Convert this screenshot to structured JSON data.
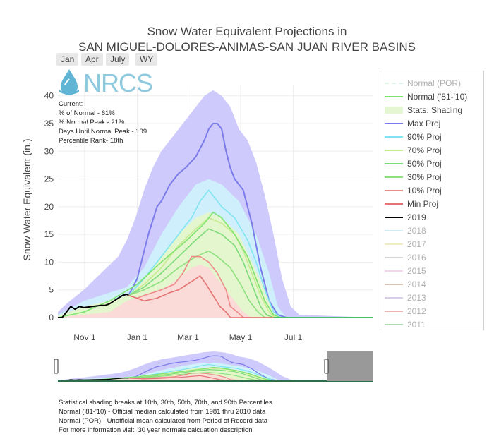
{
  "header": {
    "title_line1": "Snow Water Equivalent Projections in",
    "title_line2": "SAN MIGUEL-DOLORES-ANIMAS-SAN JUAN RIVER BASINS"
  },
  "range_buttons": [
    "Jan",
    "Apr",
    "July",
    "WY"
  ],
  "logo": {
    "text": "NRCS"
  },
  "info": {
    "current_label": "Current:",
    "pct_normal": "% of Normal - 61%",
    "pct_normal_peak": "% Normal Peak - 21%",
    "days_until_peak": "Days Until Normal Peak - 109",
    "percentile_rank": "Percentile Rank- 18th"
  },
  "colors": {
    "max": "#7b7bea",
    "p90": "#7fe5f0",
    "p70": "#c6ec8f",
    "p50": "#7ddb7a",
    "p30": "#8ee07f",
    "p10": "#ef8a8a",
    "min": "#e57373",
    "wy2019": "#000000",
    "max_fill": "#c9c4fb",
    "p90_fill": "#cff6fb",
    "p70_fill": "#e6f7c4",
    "p50_fill": "#d1f4c3",
    "p10_fill": "#fcd8d8",
    "min_fill": "#fbbdbd"
  },
  "legend": {
    "items": [
      {
        "label": "Normal (POR)",
        "style": "dash",
        "color": "#b9e8c9",
        "faded": true
      },
      {
        "label": "Normal ('81-'10)",
        "style": "line",
        "color": "#7ee36f",
        "faded": false
      },
      {
        "label": "Stats. Shading",
        "style": "box",
        "color": "#e5f7d2",
        "faded": false
      },
      {
        "label": "Max Proj",
        "style": "line",
        "color": "#7b7bea",
        "faded": false
      },
      {
        "label": "90% Proj",
        "style": "line",
        "color": "#7fe5f0",
        "faded": false
      },
      {
        "label": "70% Proj",
        "style": "line",
        "color": "#c6ec8f",
        "faded": false
      },
      {
        "label": "50% Proj",
        "style": "line",
        "color": "#7ddb7a",
        "faded": false
      },
      {
        "label": "30% Proj",
        "style": "line",
        "color": "#8ee07f",
        "faded": false
      },
      {
        "label": "10% Proj",
        "style": "line",
        "color": "#ef8a8a",
        "faded": false
      },
      {
        "label": "Min Proj",
        "style": "line",
        "color": "#e57373",
        "faded": false
      },
      {
        "label": "2019",
        "style": "line",
        "color": "#000000",
        "faded": false
      },
      {
        "label": "2018",
        "style": "line",
        "color": "#7fd6e6",
        "faded": true
      },
      {
        "label": "2017",
        "style": "line",
        "color": "#e0d27a",
        "faded": true
      },
      {
        "label": "2016",
        "style": "line",
        "color": "#9e9e9e",
        "faded": true
      },
      {
        "label": "2015",
        "style": "line",
        "color": "#e59ad8",
        "faded": true
      },
      {
        "label": "2014",
        "style": "line",
        "color": "#a0704f",
        "faded": true
      },
      {
        "label": "2013",
        "style": "line",
        "color": "#a58ac9",
        "faded": true
      },
      {
        "label": "2012",
        "style": "line",
        "color": "#e04848",
        "faded": true
      },
      {
        "label": "2011",
        "style": "line",
        "color": "#4aa84a",
        "faded": true
      }
    ]
  },
  "footnotes": {
    "line1": "Statistical shading breaks at 10th, 30th, 50th, 70th, and 90th Percentiles",
    "line2": "Normal ('81-'10) - Official median calculated from 1981 thru 2010 data",
    "line3": "Normal (POR) - Unofficial mean calculated from Period of Record data",
    "line4": "For more information visit: 30 year normals calcuation description"
  },
  "chart_data": {
    "type": "line",
    "title": "Snow Water Equivalent Projections in SAN MIGUEL-DOLORES-ANIMAS-SAN JUAN RIVER BASINS",
    "xlabel": "",
    "ylabel": "Snow Water Equivalent (in.)",
    "x_unit": "day of water year (day 0 = Oct 1)",
    "xlim": [
      0,
      365
    ],
    "ylim": [
      0,
      42
    ],
    "x_ticks": [
      {
        "label": "Nov 1",
        "day": 31
      },
      {
        "label": "Jan 1",
        "day": 92
      },
      {
        "label": "Mar 1",
        "day": 151
      },
      {
        "label": "May 1",
        "day": 212
      },
      {
        "label": "Jul 1",
        "day": 273
      }
    ],
    "y_ticks": [
      0,
      5,
      10,
      15,
      20,
      25,
      30,
      35,
      40
    ],
    "bands": [
      {
        "name": "Max shading",
        "upper": [
          [
            0,
            1
          ],
          [
            10,
            2.5
          ],
          [
            30,
            5
          ],
          [
            50,
            8
          ],
          [
            70,
            11
          ],
          [
            80,
            14
          ],
          [
            90,
            18
          ],
          [
            100,
            23
          ],
          [
            110,
            27
          ],
          [
            120,
            30
          ],
          [
            130,
            32
          ],
          [
            140,
            34
          ],
          [
            150,
            36
          ],
          [
            160,
            38
          ],
          [
            170,
            40
          ],
          [
            180,
            41
          ],
          [
            190,
            40
          ],
          [
            200,
            38
          ],
          [
            210,
            34
          ],
          [
            220,
            32
          ],
          [
            230,
            28
          ],
          [
            240,
            22
          ],
          [
            250,
            15
          ],
          [
            260,
            7
          ],
          [
            270,
            2
          ],
          [
            280,
            0.5
          ],
          [
            365,
            0
          ]
        ],
        "lower": [
          [
            0,
            0
          ],
          [
            365,
            0
          ]
        ]
      },
      {
        "name": "90% shading",
        "upper": [
          [
            0,
            0.5
          ],
          [
            30,
            3
          ],
          [
            60,
            4.5
          ],
          [
            80,
            5.5
          ],
          [
            100,
            9
          ],
          [
            120,
            15
          ],
          [
            140,
            20
          ],
          [
            160,
            24
          ],
          [
            175,
            25
          ],
          [
            190,
            24
          ],
          [
            210,
            21
          ],
          [
            230,
            15
          ],
          [
            245,
            8
          ],
          [
            255,
            2
          ],
          [
            265,
            0
          ],
          [
            365,
            0
          ]
        ],
        "lower": [
          [
            0,
            0
          ],
          [
            365,
            0
          ]
        ]
      },
      {
        "name": "70% shading",
        "upper": [
          [
            0,
            0.3
          ],
          [
            30,
            2
          ],
          [
            60,
            3
          ],
          [
            80,
            4
          ],
          [
            100,
            7
          ],
          [
            120,
            11
          ],
          [
            140,
            15
          ],
          [
            160,
            18
          ],
          [
            175,
            19
          ],
          [
            190,
            18
          ],
          [
            210,
            15
          ],
          [
            225,
            10
          ],
          [
            240,
            5
          ],
          [
            250,
            1
          ],
          [
            260,
            0
          ],
          [
            365,
            0
          ]
        ],
        "lower": [
          [
            0,
            0
          ],
          [
            365,
            0
          ]
        ]
      },
      {
        "name": "10% shading",
        "upper": [
          [
            0,
            0
          ],
          [
            60,
            1
          ],
          [
            80,
            3
          ],
          [
            100,
            4
          ],
          [
            120,
            5
          ],
          [
            140,
            7
          ],
          [
            155,
            9
          ],
          [
            165,
            9.5
          ],
          [
            175,
            9
          ],
          [
            190,
            6
          ],
          [
            205,
            3
          ],
          [
            215,
            1
          ],
          [
            225,
            0
          ],
          [
            365,
            0
          ]
        ],
        "lower": [
          [
            0,
            0
          ],
          [
            365,
            0
          ]
        ]
      }
    ],
    "series": [
      {
        "name": "Max Proj",
        "color": "#7b7bea",
        "points": [
          [
            82,
            4
          ],
          [
            92,
            7
          ],
          [
            100,
            12
          ],
          [
            105,
            15
          ],
          [
            115,
            20
          ],
          [
            120,
            21
          ],
          [
            130,
            24
          ],
          [
            140,
            26
          ],
          [
            148,
            27
          ],
          [
            160,
            29
          ],
          [
            170,
            32
          ],
          [
            175,
            34
          ],
          [
            180,
            35
          ],
          [
            185,
            35
          ],
          [
            190,
            34
          ],
          [
            195,
            30
          ],
          [
            200,
            27
          ],
          [
            205,
            25
          ],
          [
            210,
            24
          ],
          [
            215,
            23
          ],
          [
            225,
            17
          ],
          [
            235,
            9
          ],
          [
            245,
            3
          ],
          [
            255,
            0.5
          ],
          [
            265,
            0
          ],
          [
            365,
            0
          ]
        ]
      },
      {
        "name": "90% Proj",
        "color": "#7fe5f0",
        "points": [
          [
            82,
            4
          ],
          [
            100,
            7
          ],
          [
            120,
            11
          ],
          [
            140,
            15
          ],
          [
            155,
            18
          ],
          [
            165,
            21
          ],
          [
            175,
            23
          ],
          [
            180,
            22
          ],
          [
            190,
            20
          ],
          [
            205,
            18
          ],
          [
            220,
            14
          ],
          [
            230,
            10
          ],
          [
            240,
            5
          ],
          [
            250,
            1
          ],
          [
            258,
            0
          ],
          [
            365,
            0
          ]
        ]
      },
      {
        "name": "70% Proj",
        "color": "#c6ec8f",
        "points": [
          [
            82,
            4
          ],
          [
            100,
            6
          ],
          [
            120,
            9
          ],
          [
            140,
            13
          ],
          [
            160,
            16
          ],
          [
            175,
            18
          ],
          [
            190,
            17
          ],
          [
            205,
            15
          ],
          [
            215,
            12
          ],
          [
            225,
            8
          ],
          [
            235,
            4
          ],
          [
            245,
            1
          ],
          [
            252,
            0
          ],
          [
            365,
            0
          ]
        ]
      },
      {
        "name": "Normal ('81-'10)",
        "color": "#7ee36f",
        "points": [
          [
            0,
            0
          ],
          [
            30,
            1
          ],
          [
            60,
            3
          ],
          [
            92,
            6
          ],
          [
            120,
            10
          ],
          [
            150,
            14
          ],
          [
            170,
            17
          ],
          [
            180,
            19
          ],
          [
            190,
            18
          ],
          [
            205,
            15
          ],
          [
            220,
            11
          ],
          [
            230,
            7
          ],
          [
            240,
            3
          ],
          [
            250,
            0.5
          ],
          [
            258,
            0
          ],
          [
            365,
            0
          ]
        ]
      },
      {
        "name": "50% Proj",
        "color": "#7ddb7a",
        "points": [
          [
            82,
            4
          ],
          [
            100,
            5.5
          ],
          [
            120,
            8
          ],
          [
            140,
            11
          ],
          [
            160,
            14
          ],
          [
            175,
            16
          ],
          [
            190,
            15
          ],
          [
            205,
            13
          ],
          [
            215,
            10
          ],
          [
            225,
            6
          ],
          [
            235,
            2
          ],
          [
            242,
            0.5
          ],
          [
            250,
            0
          ],
          [
            365,
            0
          ]
        ]
      },
      {
        "name": "30% Proj",
        "color": "#8ee07f",
        "points": [
          [
            82,
            4
          ],
          [
            100,
            5
          ],
          [
            120,
            6.5
          ],
          [
            140,
            9
          ],
          [
            160,
            11
          ],
          [
            175,
            12
          ],
          [
            185,
            11
          ],
          [
            200,
            9
          ],
          [
            212,
            6
          ],
          [
            222,
            3
          ],
          [
            232,
            1
          ],
          [
            240,
            0
          ],
          [
            365,
            0
          ]
        ]
      },
      {
        "name": "10% Proj",
        "color": "#ef8a8a",
        "points": [
          [
            82,
            4
          ],
          [
            92,
            3.5
          ],
          [
            100,
            4
          ],
          [
            120,
            5
          ],
          [
            135,
            6
          ],
          [
            145,
            8
          ],
          [
            155,
            11
          ],
          [
            165,
            11
          ],
          [
            175,
            10
          ],
          [
            185,
            8
          ],
          [
            195,
            5
          ],
          [
            200,
            2
          ],
          [
            208,
            1
          ],
          [
            215,
            0
          ],
          [
            365,
            0
          ]
        ]
      },
      {
        "name": "Min Proj",
        "color": "#e57373",
        "points": [
          [
            82,
            4
          ],
          [
            92,
            3.5
          ],
          [
            100,
            3
          ],
          [
            115,
            3.5
          ],
          [
            130,
            4.5
          ],
          [
            140,
            5
          ],
          [
            150,
            6
          ],
          [
            160,
            7
          ],
          [
            165,
            7.5
          ],
          [
            172,
            6
          ],
          [
            180,
            4
          ],
          [
            188,
            2
          ],
          [
            195,
            1
          ],
          [
            200,
            0
          ],
          [
            365,
            0
          ]
        ]
      },
      {
        "name": "2019",
        "color": "#000000",
        "points": [
          [
            0,
            0
          ],
          [
            5,
            0
          ],
          [
            10,
            1
          ],
          [
            15,
            2
          ],
          [
            20,
            1.5
          ],
          [
            25,
            2
          ],
          [
            30,
            1.8
          ],
          [
            40,
            2
          ],
          [
            50,
            2.2
          ],
          [
            55,
            2.2
          ],
          [
            60,
            2.5
          ],
          [
            65,
            3
          ],
          [
            70,
            3.5
          ],
          [
            75,
            4
          ],
          [
            80,
            4.2
          ],
          [
            82,
            4
          ]
        ]
      }
    ]
  }
}
